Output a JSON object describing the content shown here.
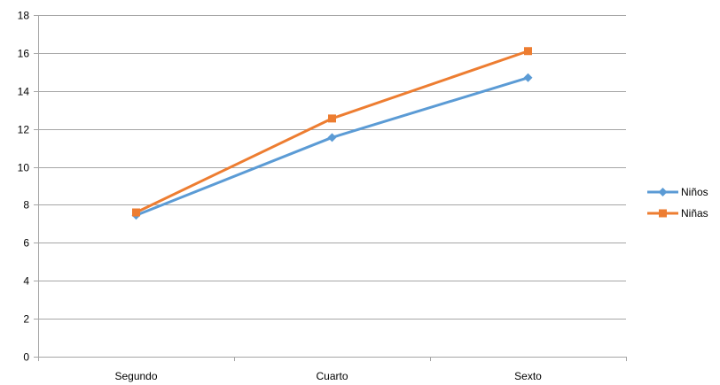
{
  "chart_data": {
    "type": "line",
    "categories": [
      "Segundo",
      "Cuarto",
      "Sexto"
    ],
    "series": [
      {
        "name": "Niños",
        "values": [
          7.45,
          11.55,
          14.7
        ],
        "color": "#5B9BD5",
        "marker": "diamond"
      },
      {
        "name": "Niñas",
        "values": [
          7.6,
          12.55,
          16.1
        ],
        "color": "#ED7D31",
        "marker": "square"
      }
    ],
    "ylim": [
      0,
      18
    ],
    "yticks": [
      0,
      2,
      4,
      6,
      8,
      10,
      12,
      14,
      16,
      18
    ],
    "grid": true,
    "legend_position": "right"
  }
}
